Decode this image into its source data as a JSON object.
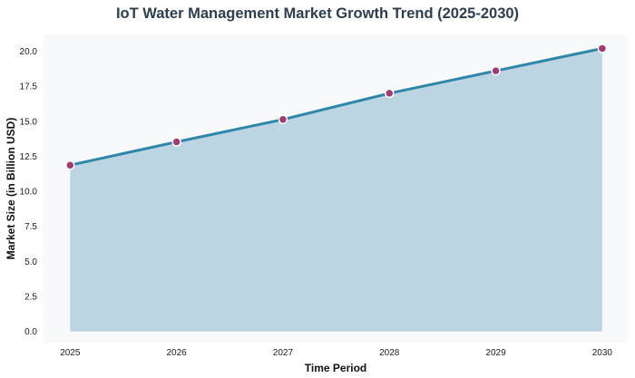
{
  "chart_data": {
    "type": "area",
    "title": "IoT Water Management Market Growth Trend (2025-2030)",
    "xlabel": "Time Period",
    "ylabel": "Market Size (in Billion USD)",
    "x": [
      2025,
      2026,
      2027,
      2028,
      2029,
      2030
    ],
    "x_tick_labels": [
      "2025",
      "2026",
      "2027",
      "2028",
      "2029",
      "2030"
    ],
    "y_tick_labels": [
      "0.0",
      "2.5",
      "5.0",
      "7.5",
      "10.0",
      "12.5",
      "15.0",
      "17.5",
      "20.0"
    ],
    "y_ticks": [
      0,
      2.5,
      5,
      7.5,
      10,
      12.5,
      15,
      17.5,
      20
    ],
    "values": [
      11.87,
      13.53,
      15.13,
      17.0,
      18.6,
      20.2
    ],
    "xlim": [
      2024.75,
      2030.24
    ],
    "ylim": [
      -0.8,
      21.2
    ],
    "grid": false,
    "colors": {
      "line": "#2e86ab",
      "fill": "#bcd5e2",
      "marker": "#a23b72",
      "background": "#f8f9fa",
      "title": "#2c3e50"
    }
  }
}
